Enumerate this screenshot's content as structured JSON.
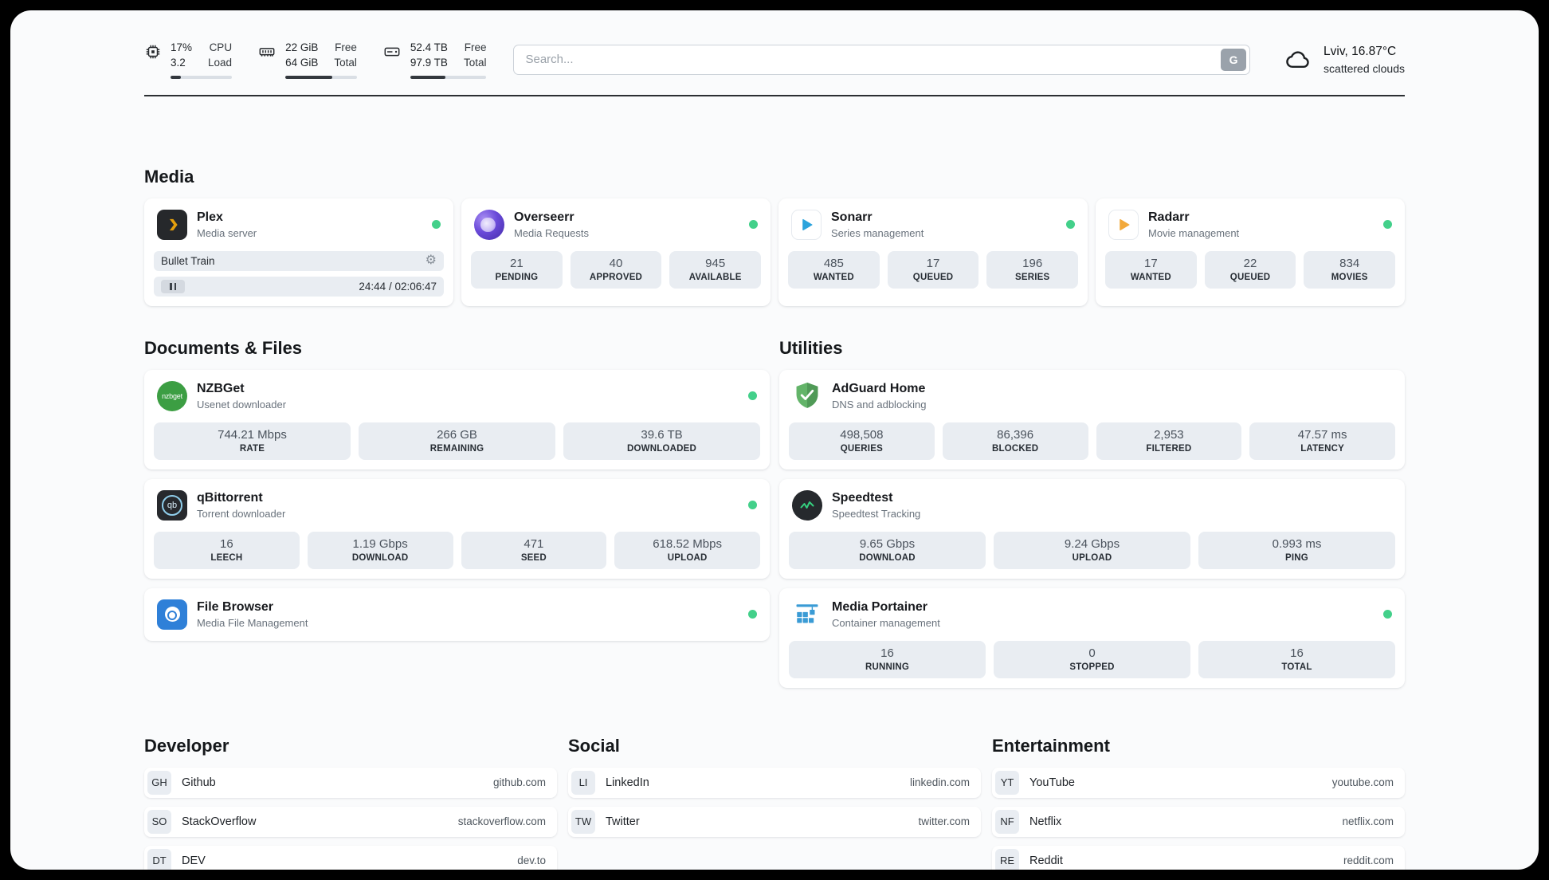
{
  "topbar": {
    "cpu": {
      "value1": "17%",
      "label1": "CPU",
      "value2": "3.2",
      "label2": "Load",
      "progress": 17
    },
    "memory": {
      "value1": "22 GiB",
      "label1": "Free",
      "value2": "64 GiB",
      "label2": "Total",
      "progress": 66
    },
    "disk": {
      "value1": "52.4 TB",
      "label1": "Free",
      "value2": "97.9 TB",
      "label2": "Total",
      "progress": 46
    },
    "search": {
      "placeholder": "Search...",
      "button_label": "G"
    },
    "weather": {
      "location": "Lviv, 16.87°C",
      "condition": "scattered clouds"
    }
  },
  "sections": {
    "media": "Media",
    "documents": "Documents & Files",
    "utilities": "Utilities",
    "developer": "Developer",
    "social": "Social",
    "entertainment": "Entertainment"
  },
  "icons": {
    "gear": "⚙",
    "nzbget_text": "nzbget",
    "qb_text": "qb"
  },
  "apps": {
    "plex": {
      "name": "Plex",
      "subtitle": "Media server",
      "now_playing": "Bullet Train",
      "time": "24:44 / 02:06:47"
    },
    "overseerr": {
      "name": "Overseerr",
      "subtitle": "Media Requests",
      "stats": [
        {
          "value": "21",
          "label": "PENDING"
        },
        {
          "value": "40",
          "label": "APPROVED"
        },
        {
          "value": "945",
          "label": "AVAILABLE"
        }
      ]
    },
    "sonarr": {
      "name": "Sonarr",
      "subtitle": "Series management",
      "stats": [
        {
          "value": "485",
          "label": "WANTED"
        },
        {
          "value": "17",
          "label": "QUEUED"
        },
        {
          "value": "196",
          "label": "SERIES"
        }
      ]
    },
    "radarr": {
      "name": "Radarr",
      "subtitle": "Movie management",
      "stats": [
        {
          "value": "17",
          "label": "WANTED"
        },
        {
          "value": "22",
          "label": "QUEUED"
        },
        {
          "value": "834",
          "label": "MOVIES"
        }
      ]
    },
    "nzbget": {
      "name": "NZBGet",
      "subtitle": "Usenet downloader",
      "stats": [
        {
          "value": "744.21 Mbps",
          "label": "RATE"
        },
        {
          "value": "266 GB",
          "label": "REMAINING"
        },
        {
          "value": "39.6 TB",
          "label": "DOWNLOADED"
        }
      ]
    },
    "qbittorrent": {
      "name": "qBittorrent",
      "subtitle": "Torrent downloader",
      "stats": [
        {
          "value": "16",
          "label": "LEECH"
        },
        {
          "value": "1.19 Gbps",
          "label": "DOWNLOAD"
        },
        {
          "value": "471",
          "label": "SEED"
        },
        {
          "value": "618.52 Mbps",
          "label": "UPLOAD"
        }
      ]
    },
    "filebrowser": {
      "name": "File Browser",
      "subtitle": "Media File Management"
    },
    "adguard": {
      "name": "AdGuard Home",
      "subtitle": "DNS and adblocking",
      "stats": [
        {
          "value": "498,508",
          "label": "QUERIES"
        },
        {
          "value": "86,396",
          "label": "BLOCKED"
        },
        {
          "value": "2,953",
          "label": "FILTERED"
        },
        {
          "value": "47.57 ms",
          "label": "LATENCY"
        }
      ]
    },
    "speedtest": {
      "name": "Speedtest",
      "subtitle": "Speedtest Tracking",
      "stats": [
        {
          "value": "9.65 Gbps",
          "label": "DOWNLOAD"
        },
        {
          "value": "9.24 Gbps",
          "label": "UPLOAD"
        },
        {
          "value": "0.993 ms",
          "label": "PING"
        }
      ]
    },
    "portainer": {
      "name": "Media Portainer",
      "subtitle": "Container management",
      "stats": [
        {
          "value": "16",
          "label": "RUNNING"
        },
        {
          "value": "0",
          "label": "STOPPED"
        },
        {
          "value": "16",
          "label": "TOTAL"
        }
      ]
    }
  },
  "bookmarks": {
    "developer": [
      {
        "abbr": "GH",
        "name": "Github",
        "url": "github.com"
      },
      {
        "abbr": "SO",
        "name": "StackOverflow",
        "url": "stackoverflow.com"
      },
      {
        "abbr": "DT",
        "name": "DEV",
        "url": "dev.to"
      }
    ],
    "social": [
      {
        "abbr": "LI",
        "name": "LinkedIn",
        "url": "linkedin.com"
      },
      {
        "abbr": "TW",
        "name": "Twitter",
        "url": "twitter.com"
      }
    ],
    "entertainment": [
      {
        "abbr": "YT",
        "name": "YouTube",
        "url": "youtube.com"
      },
      {
        "abbr": "NF",
        "name": "Netflix",
        "url": "netflix.com"
      },
      {
        "abbr": "RE",
        "name": "Reddit",
        "url": "reddit.com"
      }
    ]
  },
  "colors": {
    "status_online": "#43d08a",
    "accent_plex": "#e5a00d"
  }
}
